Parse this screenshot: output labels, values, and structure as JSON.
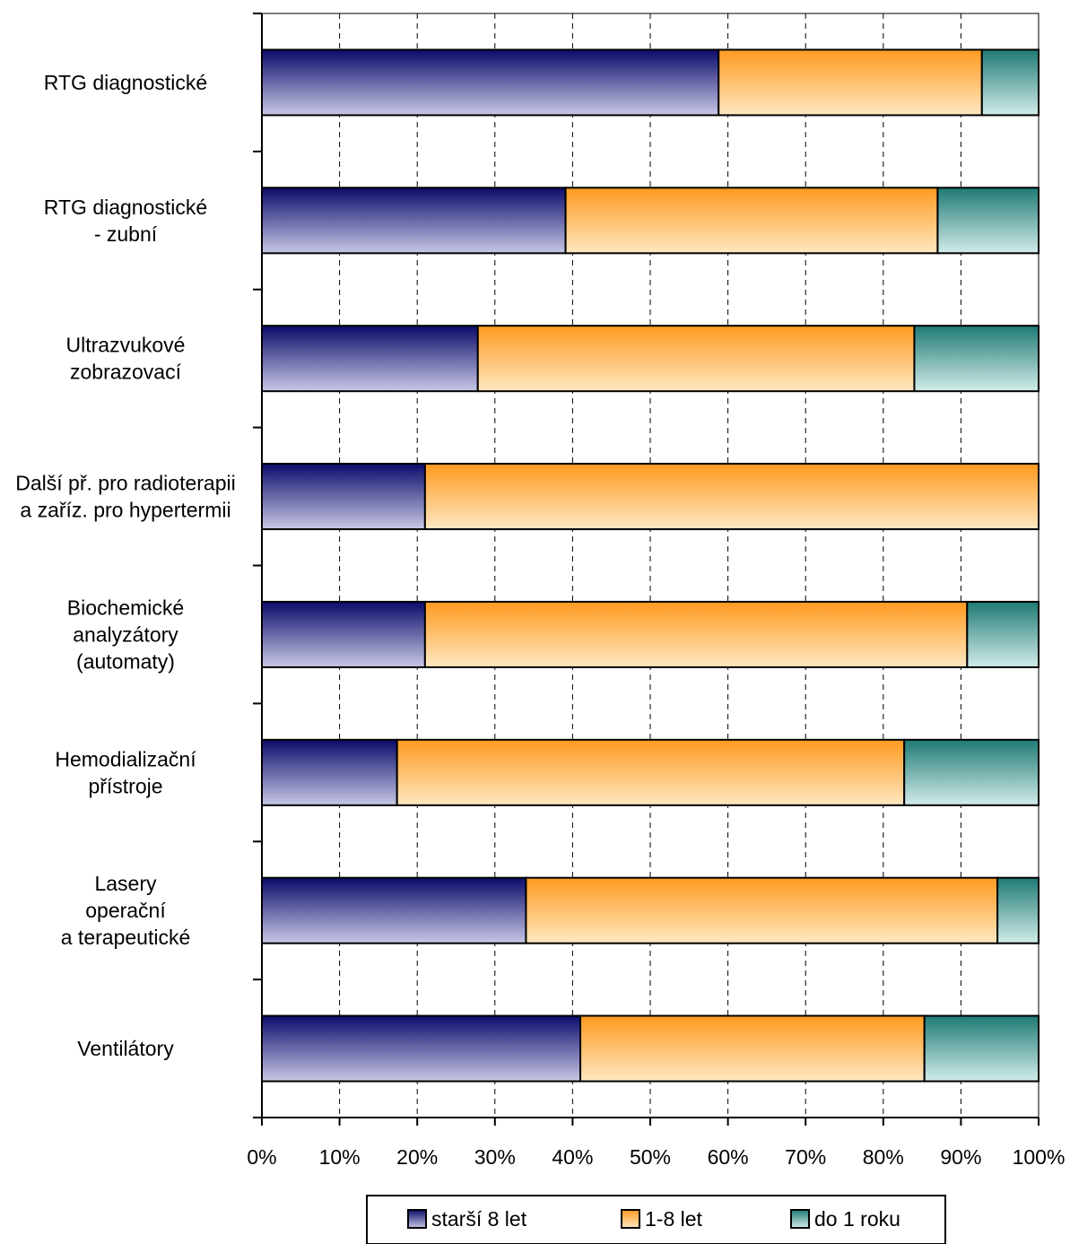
{
  "chart_data": {
    "type": "bar",
    "orientation": "horizontal",
    "stacked": "percent",
    "title": "",
    "xlabel": "",
    "ylabel": "",
    "xlim": [
      0,
      100
    ],
    "x_ticks": [
      "0%",
      "10%",
      "20%",
      "30%",
      "40%",
      "50%",
      "60%",
      "70%",
      "80%",
      "90%",
      "100%"
    ],
    "grid": "vertical dashed",
    "legend_position": "bottom",
    "categories": [
      [
        "RTG diagnostické"
      ],
      [
        "RTG diagnostické",
        "- zubní"
      ],
      [
        "Ultrazvukové",
        "zobrazovací"
      ],
      [
        "Další př. pro radioterapii",
        "a zaříz. pro hypertermii"
      ],
      [
        "Biochemické",
        "analyzátory",
        "(automaty)"
      ],
      [
        "Hemodializační",
        "přístroje"
      ],
      [
        "Lasery",
        "operační",
        "a terapeutické"
      ],
      [
        "Ventilátory"
      ]
    ],
    "series": [
      {
        "name": "starší 8 let",
        "color_dark": "#0b0b6b",
        "color_light": "#c8c8e6",
        "values": [
          58.8,
          39.1,
          27.8,
          21.0,
          21.0,
          17.4,
          34.0,
          41.0
        ]
      },
      {
        "name": "1-8 let",
        "color_dark": "#ff9a1f",
        "color_light": "#ffe8c2",
        "values": [
          33.9,
          47.9,
          56.2,
          79.0,
          69.8,
          65.3,
          60.7,
          44.3
        ]
      },
      {
        "name": "do 1 roku",
        "color_dark": "#1f7a74",
        "color_light": "#d2ecea",
        "values": [
          7.3,
          13.0,
          16.0,
          0.0,
          9.2,
          17.3,
          5.3,
          14.7
        ]
      }
    ]
  }
}
